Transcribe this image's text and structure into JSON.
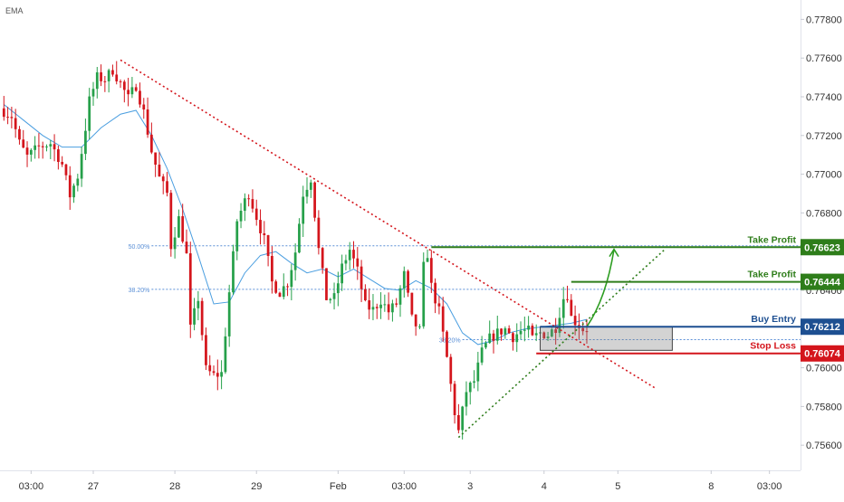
{
  "indicator_label": "EMA",
  "chart_data": {
    "type": "candlestick",
    "y_ticks": [
      "0.77800",
      "0.77600",
      "0.77400",
      "0.77200",
      "0.77000",
      "0.76800",
      "0.76600",
      "0.76400",
      "0.76200",
      "0.76000",
      "0.75800",
      "0.75600"
    ],
    "y_range": [
      0.7547,
      0.779
    ],
    "x_ticks": [
      {
        "label": "03:00",
        "bar": 7
      },
      {
        "label": "27",
        "bar": 23
      },
      {
        "label": "28",
        "bar": 44
      },
      {
        "label": "29",
        "bar": 65
      },
      {
        "label": "Feb",
        "bar": 86
      },
      {
        "label": "03:00",
        "bar": 103
      },
      {
        "label": "3",
        "bar": 120
      },
      {
        "label": "4",
        "bar": 139
      },
      {
        "label": "5",
        "bar": 158
      },
      {
        "label": "8",
        "bar": 182
      },
      {
        "label": "03:00",
        "bar": 197
      }
    ],
    "x_range_bars": [
      -1,
      205
    ],
    "levels": [
      {
        "name": "Take Profit",
        "value": 0.76623,
        "label": "0.76623",
        "color": "#2e7d1a",
        "start_bar": 110
      },
      {
        "name": "Take Profit",
        "value": 0.76444,
        "label": "0.76444",
        "color": "#2e7d1a",
        "start_bar": 146
      },
      {
        "name": "Buy Entry",
        "value": 0.76212,
        "label": "0.76212",
        "color": "#1d4f91",
        "start_bar": 138
      },
      {
        "name": "Stop Loss",
        "value": 0.76074,
        "label": "0.76074",
        "color": "#d4151c",
        "start_bar": 137
      }
    ],
    "fib_levels": [
      {
        "label": "50.00%",
        "value": 0.7663,
        "from_bar": 38,
        "to_bar": 205
      },
      {
        "label": "38.20%",
        "value": 0.76405,
        "from_bar": 38,
        "to_bar": 205
      },
      {
        "label": "38.20%",
        "value": 0.76145,
        "from_bar": 118,
        "to_bar": 205
      }
    ],
    "zone": {
      "from_bar": 138,
      "to_bar": 172,
      "low": 0.7609,
      "high": 0.76212
    },
    "trendlines": [
      {
        "style": "red-dotted",
        "points": [
          [
            30,
            0.7759
          ],
          [
            168,
            0.7589
          ]
        ]
      },
      {
        "style": "green-dotted",
        "points": [
          [
            117,
            0.7564
          ],
          [
            170,
            0.7661
          ]
        ]
      }
    ],
    "arrow": {
      "points": [
        [
          150,
          0.76212
        ],
        [
          155,
          0.7636
        ],
        [
          157,
          0.76612
        ]
      ]
    },
    "ema_x": [
      0,
      5,
      10,
      15,
      20,
      25,
      30,
      34,
      38,
      42,
      46,
      50,
      54,
      58,
      62,
      66,
      70,
      74,
      78,
      82,
      86,
      90,
      94,
      98,
      102,
      106,
      110,
      114,
      118,
      122,
      126,
      130,
      134,
      138,
      142,
      146,
      150
    ],
    "ema_y": [
      0.7736,
      0.7728,
      0.772,
      0.7714,
      0.7714,
      0.7724,
      0.7731,
      0.7733,
      0.772,
      0.7703,
      0.7682,
      0.7658,
      0.7633,
      0.7634,
      0.7649,
      0.7658,
      0.766,
      0.7654,
      0.7649,
      0.7651,
      0.7647,
      0.7651,
      0.7646,
      0.7641,
      0.764,
      0.7645,
      0.7641,
      0.7633,
      0.7618,
      0.7612,
      0.7614,
      0.7618,
      0.762,
      0.7621,
      0.7622,
      0.7623,
      0.7625
    ],
    "candle_path": [
      [
        0,
        0.7734
      ],
      [
        3,
        0.773
      ],
      [
        5,
        0.7716
      ],
      [
        7,
        0.7709
      ],
      [
        10,
        0.7714
      ],
      [
        13,
        0.7716
      ],
      [
        15,
        0.7709
      ],
      [
        16,
        0.7705
      ],
      [
        18,
        0.7689
      ],
      [
        20,
        0.7699
      ],
      [
        22,
        0.7724
      ],
      [
        23,
        0.7738
      ],
      [
        25,
        0.775
      ],
      [
        27,
        0.7749
      ],
      [
        29,
        0.7754
      ],
      [
        31,
        0.7747
      ],
      [
        33,
        0.7739
      ],
      [
        35,
        0.7746
      ],
      [
        37,
        0.7732
      ],
      [
        39,
        0.7712
      ],
      [
        41,
        0.7698
      ],
      [
        43,
        0.769
      ],
      [
        44,
        0.7663
      ],
      [
        46,
        0.7677
      ],
      [
        48,
        0.7658
      ],
      [
        49,
        0.762
      ],
      [
        51,
        0.7636
      ],
      [
        53,
        0.7599
      ],
      [
        55,
        0.7596
      ],
      [
        57,
        0.7597
      ],
      [
        59,
        0.7639
      ],
      [
        61,
        0.7676
      ],
      [
        63,
        0.7686
      ],
      [
        64,
        0.769
      ],
      [
        66,
        0.7678
      ],
      [
        68,
        0.7666
      ],
      [
        70,
        0.7644
      ],
      [
        72,
        0.7639
      ],
      [
        74,
        0.7644
      ],
      [
        76,
        0.766
      ],
      [
        78,
        0.769
      ],
      [
        80,
        0.7698
      ],
      [
        82,
        0.7661
      ],
      [
        84,
        0.7636
      ],
      [
        86,
        0.7636
      ],
      [
        88,
        0.7652
      ],
      [
        90,
        0.7661
      ],
      [
        92,
        0.765
      ],
      [
        94,
        0.7632
      ],
      [
        96,
        0.763
      ],
      [
        98,
        0.7635
      ],
      [
        100,
        0.7629
      ],
      [
        102,
        0.7633
      ],
      [
        104,
        0.7648
      ],
      [
        106,
        0.7625
      ],
      [
        108,
        0.7619
      ],
      [
        109,
        0.7652
      ],
      [
        110,
        0.7659
      ],
      [
        111,
        0.7642
      ],
      [
        113,
        0.7629
      ],
      [
        115,
        0.7605
      ],
      [
        117,
        0.7577
      ],
      [
        118,
        0.7567
      ],
      [
        120,
        0.7588
      ],
      [
        122,
        0.7593
      ],
      [
        124,
        0.7608
      ],
      [
        126,
        0.7615
      ],
      [
        128,
        0.7618
      ],
      [
        130,
        0.762
      ],
      [
        132,
        0.7616
      ],
      [
        134,
        0.7619
      ],
      [
        136,
        0.7619
      ],
      [
        137,
        0.7615
      ],
      [
        139,
        0.7618
      ],
      [
        141,
        0.7617
      ],
      [
        143,
        0.7621
      ],
      [
        145,
        0.7636
      ],
      [
        146,
        0.7638
      ],
      [
        147,
        0.7626
      ],
      [
        148,
        0.7624
      ],
      [
        150,
        0.762
      ]
    ]
  }
}
